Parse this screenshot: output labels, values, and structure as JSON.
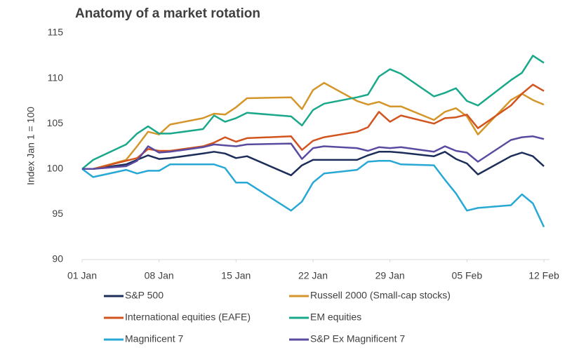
{
  "chart_data": {
    "type": "line",
    "title": "Anatomy of a market rotation",
    "y_label": "Index Jan 1 = 100",
    "x": [
      "01 Jan",
      "02 Jan",
      "05 Jan",
      "06 Jan",
      "07 Jan",
      "08 Jan",
      "09 Jan",
      "12 Jan",
      "13 Jan",
      "14 Jan",
      "15 Jan",
      "16 Jan",
      "20 Jan",
      "21 Jan",
      "22 Jan",
      "23 Jan",
      "26 Jan",
      "27 Jan",
      "28 Jan",
      "29 Jan",
      "30 Jan",
      "02 Feb",
      "03 Feb",
      "04 Feb",
      "05 Feb",
      "06 Feb",
      "09 Feb",
      "10 Feb",
      "11 Feb",
      "12 Feb"
    ],
    "xlim": [
      "01 Jan",
      "12 Feb"
    ],
    "xticks": [
      "01 Jan",
      "08 Jan",
      "15 Jan",
      "22 Jan",
      "29 Jan",
      "05 Feb",
      "12 Feb"
    ],
    "ylim": [
      90,
      115
    ],
    "yticks": [
      90,
      95,
      100,
      105,
      110,
      115
    ],
    "grid": false,
    "series": [
      {
        "name": "S&P 500",
        "color": "#1c2d5a",
        "values": [
          100,
          100,
          100.5,
          101,
          101.5,
          101.1,
          101.2,
          101.7,
          101.9,
          101.7,
          101.2,
          101.4,
          99.3,
          100.4,
          101,
          101,
          101,
          101.5,
          101.9,
          101.9,
          101.8,
          101.4,
          101.9,
          101.1,
          100.6,
          99.4,
          101.4,
          101.8,
          101.4,
          100.3
        ]
      },
      {
        "name": "Russell 2000 (Small-cap stocks)",
        "color": "#d4962a",
        "values": [
          100,
          100,
          101,
          102.5,
          104.1,
          103.8,
          104.9,
          105.6,
          106.1,
          106,
          106.8,
          107.8,
          107.9,
          106.6,
          108.7,
          109.5,
          107.5,
          107.1,
          107.4,
          106.9,
          106.9,
          105.4,
          106.3,
          106.7,
          105.8,
          103.8,
          107.6,
          108.3,
          107.6,
          107.1
        ]
      },
      {
        "name": "International equities (EAFE)",
        "color": "#d2541e",
        "values": [
          100,
          100,
          100.9,
          101.2,
          102.2,
          102,
          102,
          102.5,
          102.9,
          103.5,
          103,
          103.4,
          103.6,
          102.1,
          103.1,
          103.5,
          104.1,
          104.6,
          106.3,
          105.2,
          105.9,
          105,
          105.6,
          105.7,
          106,
          104.5,
          107,
          108.3,
          109.3,
          108.6
        ]
      },
      {
        "name": "EM equities",
        "color": "#1aa88a",
        "values": [
          100,
          101,
          102.7,
          103.9,
          104.7,
          103.9,
          103.9,
          104.4,
          105.9,
          105.2,
          105.6,
          106.2,
          105.8,
          104.8,
          106.5,
          107.2,
          107.9,
          108.2,
          110.2,
          111,
          110.5,
          108,
          108.4,
          108.9,
          107.5,
          107,
          109.8,
          110.6,
          112.5,
          111.7
        ]
      },
      {
        "name": "Magnificent 7",
        "color": "#28a8d4",
        "values": [
          100,
          99.1,
          99.9,
          99.5,
          99.8,
          99.8,
          100.5,
          100.5,
          100.5,
          100.1,
          98.5,
          98.5,
          95.4,
          96.4,
          98.5,
          99.5,
          99.9,
          100.8,
          100.9,
          100.9,
          100.5,
          100.4,
          98.8,
          97.3,
          95.4,
          95.7,
          96,
          97.2,
          96.2,
          93.6
        ]
      },
      {
        "name": "S&P Ex Magnificent 7",
        "color": "#5b4ba0",
        "values": [
          100,
          100,
          100.3,
          100.9,
          102.5,
          101.8,
          101.9,
          102.4,
          102.7,
          102.6,
          102.5,
          102.7,
          102.8,
          101.1,
          102.3,
          102.5,
          102.3,
          102,
          102.4,
          102.3,
          102.4,
          101.9,
          102.5,
          102,
          101.8,
          100.8,
          103.2,
          103.5,
          103.6,
          103.3
        ]
      }
    ]
  }
}
